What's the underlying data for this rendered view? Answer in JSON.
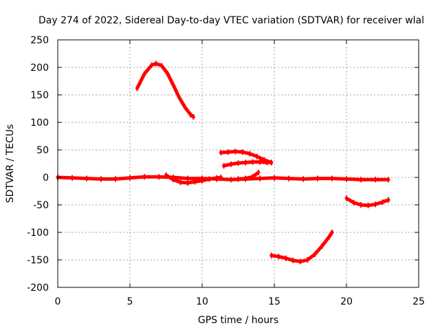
{
  "chart_data": {
    "type": "line",
    "title": "Day 274 of 2022, Sidereal Day-to-day VTEC variation (SDTVAR) for receiver wlal",
    "xlabel": "GPS time / hours",
    "ylabel": "SDTVAR / TECUs",
    "xlim": [
      0,
      25
    ],
    "ylim": [
      -200,
      250
    ],
    "xticks": [
      0,
      5,
      10,
      15,
      20,
      25
    ],
    "yticks": [
      -200,
      -150,
      -100,
      -50,
      0,
      50,
      100,
      150,
      200,
      250
    ],
    "grid": true,
    "legend": "none",
    "colors": {
      "series": "#ff0000",
      "grid": "#a0a0a0",
      "axis": "#000000"
    },
    "series": [
      {
        "name": "baseline",
        "x": [
          0,
          1,
          2,
          3,
          4,
          5,
          6,
          7,
          8,
          9,
          10,
          11,
          12,
          13,
          14,
          15,
          16,
          17,
          18,
          19,
          20,
          21,
          22,
          22.9
        ],
        "y": [
          0,
          -1,
          -2,
          -3,
          -3,
          -1,
          1,
          1,
          0,
          -2,
          -2,
          -3,
          -4,
          -3,
          -2,
          -1,
          -2,
          -3,
          -2,
          -2,
          -3,
          -4,
          -4,
          -4
        ]
      },
      {
        "name": "dip-8-10h",
        "x": [
          7.5,
          8.0,
          8.5,
          9.0,
          9.5,
          10.0,
          10.5,
          11.0,
          11.3
        ],
        "y": [
          4,
          -4,
          -9,
          -10,
          -8,
          -6,
          -3,
          -1,
          0
        ]
      },
      {
        "name": "arc-5.5-9.5h",
        "x": [
          5.5,
          6.0,
          6.5,
          6.8,
          7.2,
          7.6,
          8.0,
          8.4,
          8.8,
          9.2,
          9.4
        ],
        "y": [
          162,
          188,
          204,
          207,
          203,
          189,
          168,
          146,
          128,
          114,
          110
        ]
      },
      {
        "name": "arc-11-14.8h-upper",
        "x": [
          11.3,
          11.8,
          12.3,
          12.8,
          13.3,
          13.8,
          14.3,
          14.8
        ],
        "y": [
          45,
          46,
          47,
          46,
          43,
          38,
          32,
          27
        ]
      },
      {
        "name": "arc-11-14.8h-lower",
        "x": [
          11.5,
          12.0,
          12.5,
          13.0,
          13.5,
          14.0,
          14.5,
          14.8
        ],
        "y": [
          21,
          24,
          26,
          27,
          28,
          28,
          27,
          27
        ]
      },
      {
        "name": "hook-12.5-14h",
        "x": [
          12.5,
          13.0,
          13.5,
          13.9
        ],
        "y": [
          -3,
          -2,
          1,
          9
        ]
      },
      {
        "name": "arc-14.8-19h",
        "x": [
          14.8,
          15.3,
          15.8,
          16.3,
          16.8,
          17.3,
          17.8,
          18.3,
          18.8,
          19.0
        ],
        "y": [
          -142,
          -144,
          -147,
          -151,
          -153,
          -150,
          -140,
          -125,
          -108,
          -100
        ]
      },
      {
        "name": "arc-20-22.9h",
        "x": [
          20.0,
          20.5,
          21.0,
          21.5,
          22.0,
          22.5,
          22.9
        ],
        "y": [
          -38,
          -46,
          -50,
          -51,
          -49,
          -45,
          -41
        ]
      }
    ]
  }
}
